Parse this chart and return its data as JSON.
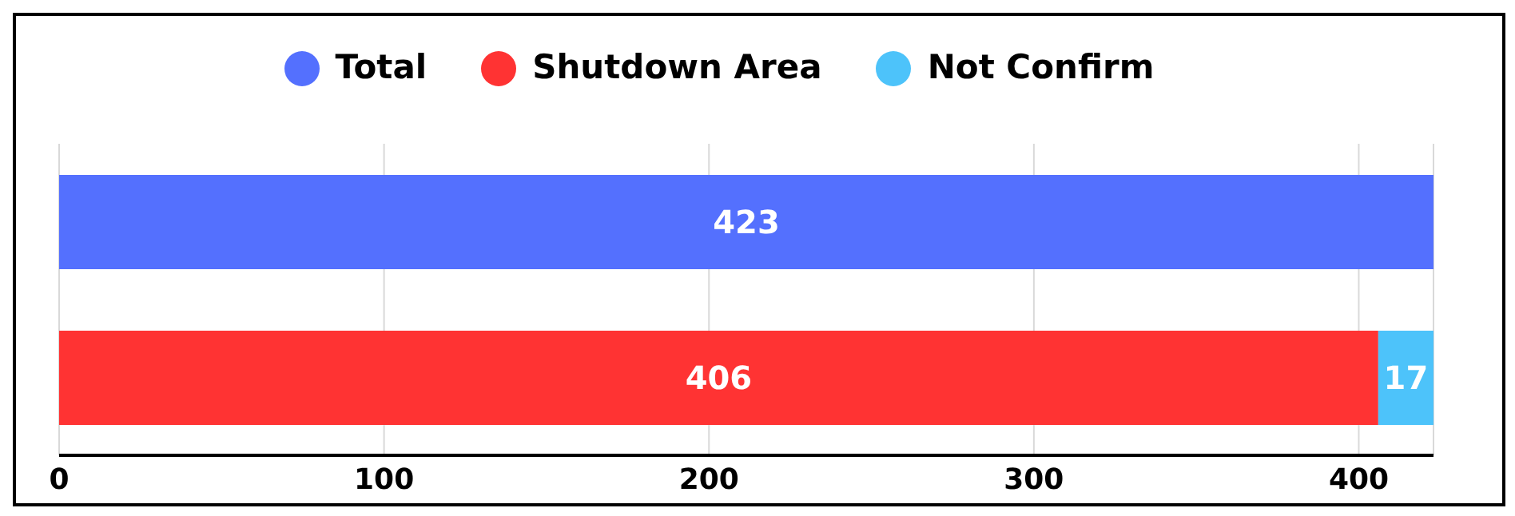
{
  "chart_data": {
    "type": "bar",
    "orientation": "horizontal",
    "stacked": true,
    "categories": [
      null,
      null
    ],
    "series": [
      {
        "name": "Total",
        "color": "#5470fe",
        "values": [
          423,
          null
        ]
      },
      {
        "name": "Shutdown Area",
        "color": "#ff3333",
        "values": [
          null,
          406
        ]
      },
      {
        "name": "Not Confirm",
        "color": "#4dc3fa",
        "values": [
          null,
          17
        ]
      }
    ],
    "xlim": [
      0,
      423
    ],
    "xticks": [
      0,
      100,
      200,
      300,
      400
    ],
    "grid": "x",
    "legend": "top",
    "data_labels": true
  }
}
